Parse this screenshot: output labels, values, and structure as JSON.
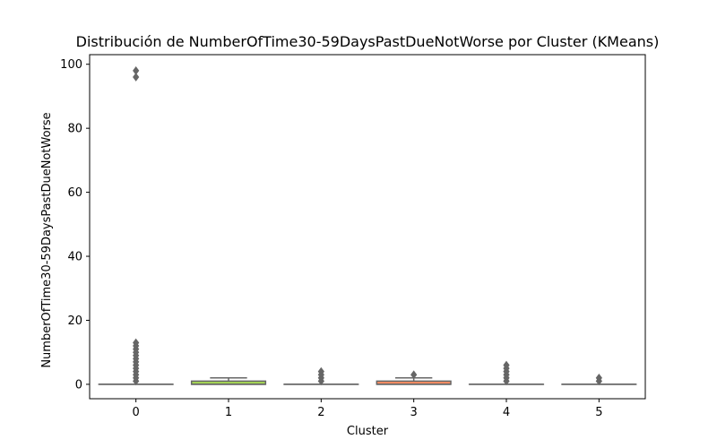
{
  "chart_data": {
    "type": "box",
    "title": "Distribución de NumberOfTime30-59DaysPastDueNotWorse por Cluster (KMeans)",
    "xlabel": "Cluster",
    "ylabel": "NumberOfTime30-59DaysPastDueNotWorse",
    "categories": [
      "0",
      "1",
      "2",
      "3",
      "4",
      "5"
    ],
    "ylim": [
      -4.5,
      103
    ],
    "yticks": [
      0,
      20,
      40,
      60,
      80,
      100
    ],
    "grid": false,
    "boxes": [
      {
        "category": "0",
        "q1": 0,
        "median": 0,
        "q3": 0,
        "whisker_low": 0,
        "whisker_high": 0,
        "color": "#66c2a5",
        "outliers": [
          1,
          2,
          3,
          4,
          5,
          6,
          7,
          8,
          9,
          10,
          11,
          12,
          13,
          96,
          98
        ]
      },
      {
        "category": "1",
        "q1": 0,
        "median": 0,
        "q3": 1,
        "whisker_low": 0,
        "whisker_high": 2,
        "color": "#a6d854",
        "outliers": []
      },
      {
        "category": "2",
        "q1": 0,
        "median": 0,
        "q3": 0,
        "whisker_low": 0,
        "whisker_high": 0,
        "color": "#8da0cb",
        "outliers": [
          1,
          2,
          3,
          4
        ]
      },
      {
        "category": "3",
        "q1": 0,
        "median": 0,
        "q3": 1,
        "whisker_low": 0,
        "whisker_high": 2,
        "color": "#fc8d62",
        "outliers": [
          3
        ]
      },
      {
        "category": "4",
        "q1": 0,
        "median": 0,
        "q3": 0,
        "whisker_low": 0,
        "whisker_high": 0,
        "color": "#8da0cb",
        "outliers": [
          1,
          2,
          3,
          4,
          5,
          6
        ]
      },
      {
        "category": "5",
        "q1": 0,
        "median": 0,
        "q3": 0,
        "whisker_low": 0,
        "whisker_high": 0,
        "color": "#8da0cb",
        "outliers": [
          1,
          2
        ]
      }
    ],
    "line_color": "#666666"
  }
}
